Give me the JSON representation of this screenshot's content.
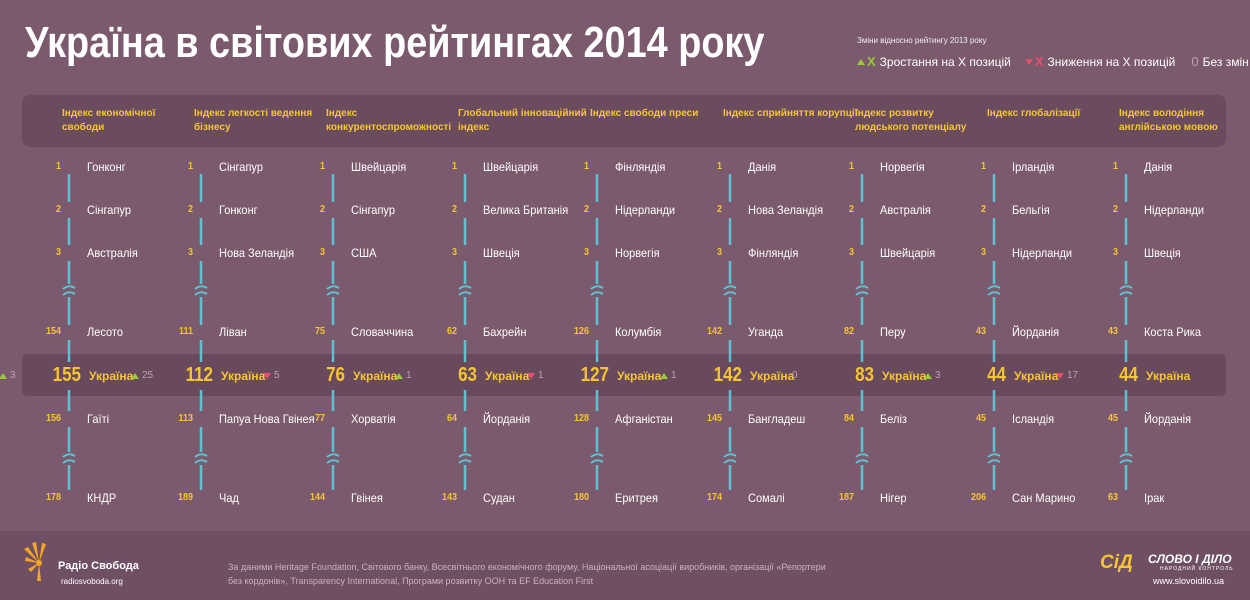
{
  "title": "Україна в світових рейтингах 2014 року",
  "legend": {
    "title": "Зміни відносно рейтингу 2013 року",
    "up_symbol": "X",
    "up_label": "Зростання на X позицій",
    "down_symbol": "X",
    "down_label": "Зниження на X позицій",
    "same_symbol": "0",
    "same_label": "Без змін"
  },
  "colors": {
    "background": "#7b5a6e",
    "accent": "#f5c631",
    "line": "#5fc0cf",
    "up": "#9cc93a",
    "down": "#e2506c"
  },
  "columns": [
    {
      "header": "Індекс економічної свободи",
      "top": [
        {
          "r": "1",
          "c": "Гонконг"
        },
        {
          "r": "2",
          "c": "Сінгапур"
        },
        {
          "r": "3",
          "c": "Австралія"
        }
      ],
      "before": {
        "r": "154",
        "c": "Лесото"
      },
      "ukraine": {
        "change_dir": "up",
        "change": "3",
        "rank": "155",
        "name": "Україна"
      },
      "after": {
        "r": "156",
        "c": "Гаїті"
      },
      "last": {
        "r": "178",
        "c": "КНДР"
      }
    },
    {
      "header": "Індекс легкості ведення бізнесу",
      "top": [
        {
          "r": "1",
          "c": "Сінгапур"
        },
        {
          "r": "2",
          "c": "Гонконг"
        },
        {
          "r": "3",
          "c": "Нова Зеландія"
        }
      ],
      "before": {
        "r": "111",
        "c": "Ліван"
      },
      "ukraine": {
        "change_dir": "up",
        "change": "25",
        "rank": "112",
        "name": "Україна"
      },
      "after": {
        "r": "113",
        "c": "Папуа Нова Гвінея"
      },
      "last": {
        "r": "189",
        "c": "Чад"
      }
    },
    {
      "header": "Індекс конкурентоспроможності",
      "top": [
        {
          "r": "1",
          "c": "Швейцарія"
        },
        {
          "r": "2",
          "c": "Сінгапур"
        },
        {
          "r": "3",
          "c": "США"
        }
      ],
      "before": {
        "r": "75",
        "c": "Словаччина"
      },
      "ukraine": {
        "change_dir": "down",
        "change": "5",
        "rank": "76",
        "name": "Україна"
      },
      "after": {
        "r": "77",
        "c": "Хорватія"
      },
      "last": {
        "r": "144",
        "c": "Гвінея"
      }
    },
    {
      "header": "Глобальний інноваційний індекс",
      "top": [
        {
          "r": "1",
          "c": "Швейцарія"
        },
        {
          "r": "2",
          "c": "Велика Британія"
        },
        {
          "r": "3",
          "c": "Швеція"
        }
      ],
      "before": {
        "r": "62",
        "c": "Бахрейн"
      },
      "ukraine": {
        "change_dir": "up",
        "change": "1",
        "rank": "63",
        "name": "Україна"
      },
      "after": {
        "r": "64",
        "c": "Йорданія"
      },
      "last": {
        "r": "143",
        "c": "Судан"
      }
    },
    {
      "header": "Індекс свободи преси",
      "top": [
        {
          "r": "1",
          "c": "Фінляндія"
        },
        {
          "r": "2",
          "c": "Нідерланди"
        },
        {
          "r": "3",
          "c": "Норвегія"
        }
      ],
      "before": {
        "r": "126",
        "c": "Колумбія"
      },
      "ukraine": {
        "change_dir": "down",
        "change": "1",
        "rank": "127",
        "name": "Україна"
      },
      "after": {
        "r": "128",
        "c": "Афганістан"
      },
      "last": {
        "r": "180",
        "c": "Еритрея"
      }
    },
    {
      "header": "Індекс сприйняття корупції",
      "top": [
        {
          "r": "1",
          "c": "Данія"
        },
        {
          "r": "2",
          "c": "Нова Зеландія"
        },
        {
          "r": "3",
          "c": "Фінляндія"
        }
      ],
      "before": {
        "r": "142",
        "c": "Уганда"
      },
      "ukraine": {
        "change_dir": "up",
        "change": "1",
        "rank": "142",
        "name": "Україна"
      },
      "after": {
        "r": "145",
        "c": "Бангладеш"
      },
      "last": {
        "r": "174",
        "c": "Сомалі"
      }
    },
    {
      "header": "Індекс розвитку людського потенціалу",
      "top": [
        {
          "r": "1",
          "c": "Норвегія"
        },
        {
          "r": "2",
          "c": "Австралія"
        },
        {
          "r": "3",
          "c": "Швейцарія"
        }
      ],
      "before": {
        "r": "82",
        "c": "Перу"
      },
      "ukraine": {
        "change_dir": "same",
        "change": "0",
        "rank": "83",
        "name": "Україна"
      },
      "after": {
        "r": "84",
        "c": "Беліз"
      },
      "last": {
        "r": "187",
        "c": "Нігер"
      }
    },
    {
      "header": "Індекс глобалізації",
      "top": [
        {
          "r": "1",
          "c": "Ірландія"
        },
        {
          "r": "2",
          "c": "Бельгія"
        },
        {
          "r": "3",
          "c": "Нідерланди"
        }
      ],
      "before": {
        "r": "43",
        "c": "Йорданія"
      },
      "ukraine": {
        "change_dir": "up",
        "change": "3",
        "rank": "44",
        "name": "Україна"
      },
      "after": {
        "r": "45",
        "c": "Ісландія"
      },
      "last": {
        "r": "206",
        "c": "Сан Марино"
      }
    },
    {
      "header": "Індекс володіння англійською мовою",
      "top": [
        {
          "r": "1",
          "c": "Данія"
        },
        {
          "r": "2",
          "c": "Нідерланди"
        },
        {
          "r": "3",
          "c": "Швеція"
        }
      ],
      "before": {
        "r": "43",
        "c": "Коста Рика"
      },
      "ukraine": {
        "change_dir": "down",
        "change": "17",
        "rank": "44",
        "name": "Україна"
      },
      "after": {
        "r": "45",
        "c": "Йорданія"
      },
      "last": {
        "r": "63",
        "c": "Ірак"
      }
    }
  ],
  "footer": {
    "brand": "Радіо Свобода",
    "brand_url": "radiosvoboda.org",
    "source": "За даними Heritage Foundation, Світового банку, Всесвітнього економічного форуму, Національної асоціації виробників, організації «Репортери без кордонів», Transparency International, Програми розвитку ООН та EF Education First",
    "partner_logo": "СіД",
    "partner_name": "СЛОВО І ДІЛО",
    "partner_tagline": "НАРОДНИЙ КОНТРОЛЬ",
    "partner_url": "www.slovoidilo.ua"
  }
}
